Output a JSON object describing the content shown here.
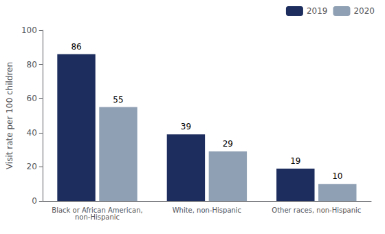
{
  "chart_data": {
    "type": "bar",
    "categories": [
      "Black or African American,\nnon-Hispanic",
      "White, non-Hispanic",
      "Other races, non-Hispanic"
    ],
    "series": [
      {
        "name": "2019",
        "color": "#1c2d5e",
        "values": [
          86,
          39,
          19
        ]
      },
      {
        "name": "2020",
        "color": "#8fa0b4",
        "values": [
          55,
          29,
          10
        ]
      }
    ],
    "ylabel": "Visit rate per 100 children",
    "ylim": [
      0,
      100
    ],
    "yticks": [
      0,
      20,
      40,
      60,
      80,
      100
    ],
    "grid": false,
    "legend": "upper right",
    "data_labels": true
  }
}
